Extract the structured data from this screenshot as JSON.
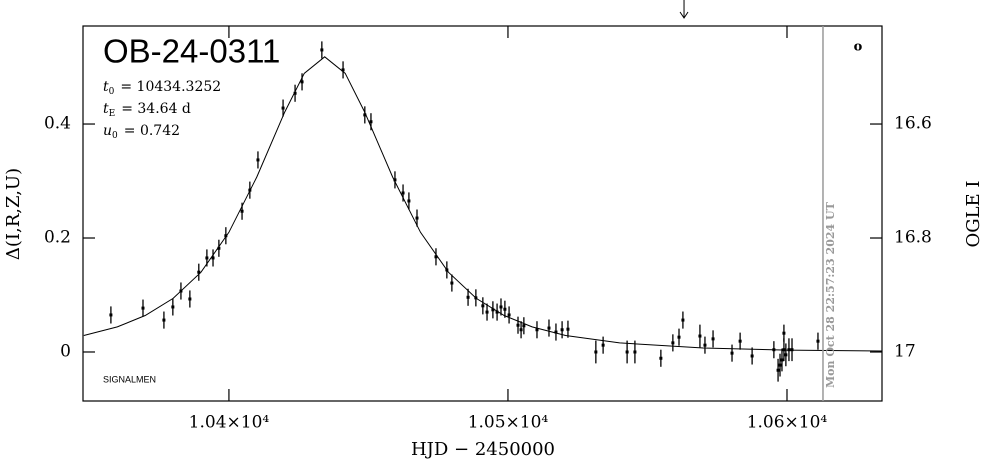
{
  "chart_data": {
    "type": "scatter",
    "title": "OB-24-0311",
    "params": [
      {
        "symbol": "t",
        "sub": "0",
        "text": "= 10434.3252"
      },
      {
        "symbol": "t",
        "sub": "E",
        "text": "= 34.64 d"
      },
      {
        "symbol": "u",
        "sub": "0",
        "text": "= 0.742"
      }
    ],
    "xlabel": "HJD − 2450000",
    "ylabel": "Δ(I,R,Z,U)",
    "y2label": "OGLE I",
    "xlim": [
      10347.7,
      10634.05
    ],
    "xticks": [
      {
        "value": 10400,
        "label": "1.04×10⁴"
      },
      {
        "value": 10500,
        "label": "1.05×10⁴"
      },
      {
        "value": 10600,
        "label": "1.06×10⁴"
      }
    ],
    "ylim": [
      -0.086,
      0.572
    ],
    "yticks": [
      0,
      0.2,
      0.4
    ],
    "y2lim": [
      17.086,
      16.428
    ],
    "y2ticks": [
      16.6,
      16.8,
      17
    ],
    "color": "#000000",
    "x": [
      10357.7,
      10369.2,
      10376.7,
      10379.9,
      10382.8,
      10386.0,
      10389.2,
      10392.1,
      10394.3,
      10396.4,
      10398.9,
      10404.7,
      10407.5,
      10410.4,
      10419.4,
      10423.7,
      10426.2,
      10433.3,
      10440.9,
      10448.7,
      10450.9,
      10459.5,
      10462.4,
      10464.5,
      10467.4,
      10474.2,
      10478.1,
      10479.9,
      10485.7,
      10488.5,
      10491.0,
      10492.5,
      10494.6,
      10496.1,
      10497.5,
      10498.9,
      10500.4,
      10503.6,
      10504.7,
      10505.7,
      10510.4,
      10514.7,
      10517.2,
      10519.4,
      10521.5,
      10531.5,
      10534.1,
      10542.7,
      10545.5,
      10554.8,
      10559.1,
      10561.3,
      10562.7,
      10568.8,
      10570.6,
      10573.5,
      10580.3,
      10583.2,
      10587.5,
      10595.3,
      10596.8,
      10597.5,
      10598.2,
      10598.9,
      10599.6,
      10600.7,
      10601.8,
      10598.9,
      10611.1
    ],
    "values": [
      0.065,
      0.077,
      0.056,
      0.079,
      0.107,
      0.093,
      0.14,
      0.165,
      0.165,
      0.182,
      0.204,
      0.247,
      0.284,
      0.337,
      0.428,
      0.454,
      0.474,
      0.53,
      0.495,
      0.416,
      0.404,
      0.302,
      0.279,
      0.265,
      0.235,
      0.167,
      0.144,
      0.121,
      0.096,
      0.095,
      0.081,
      0.07,
      0.074,
      0.07,
      0.079,
      0.075,
      0.065,
      0.047,
      0.039,
      0.046,
      0.039,
      0.042,
      0.035,
      0.039,
      0.04,
      0,
      0.012,
      0,
      0,
      -0.011,
      0.016,
      0.026,
      0.056,
      0.028,
      0.012,
      0.023,
      -0.002,
      0.019,
      -0.007,
      0.004,
      -0.032,
      -0.023,
      -0.014,
      0.004,
      -0.005,
      0.004,
      0.004,
      0.033,
      0.019
    ],
    "errors": [
      0.015,
      0.015,
      0.015,
      0.015,
      0.015,
      0.015,
      0.015,
      0.015,
      0.015,
      0.015,
      0.015,
      0.015,
      0.015,
      0.015,
      0.015,
      0.015,
      0.015,
      0.015,
      0.015,
      0.015,
      0.015,
      0.015,
      0.015,
      0.015,
      0.015,
      0.015,
      0.015,
      0.015,
      0.015,
      0.015,
      0.015,
      0.015,
      0.015,
      0.015,
      0.015,
      0.015,
      0.015,
      0.015,
      0.015,
      0.015,
      0.015,
      0.015,
      0.015,
      0.015,
      0.015,
      0.02,
      0.015,
      0.02,
      0.02,
      0.015,
      0.015,
      0.015,
      0.015,
      0.02,
      0.015,
      0.015,
      0.015,
      0.015,
      0.015,
      0.015,
      0.02,
      0.02,
      0.02,
      0.02,
      0.02,
      0.02,
      0.02,
      0.015,
      0.015
    ],
    "model": {
      "x": [
        10348,
        10360,
        10370,
        10380,
        10390,
        10400,
        10410,
        10420,
        10427,
        10434.33,
        10441.66,
        10448.66,
        10458.66,
        10468.66,
        10478.66,
        10488.66,
        10498.66,
        10508.66,
        10520.66,
        10540,
        10570,
        10600,
        10634
      ],
      "values": [
        0.029,
        0.044,
        0.064,
        0.094,
        0.14,
        0.21,
        0.307,
        0.421,
        0.489,
        0.518,
        0.489,
        0.421,
        0.307,
        0.21,
        0.14,
        0.094,
        0.064,
        0.044,
        0.029,
        0.016,
        0.007,
        0.0034,
        0.0017
      ]
    },
    "now_line": {
      "x": 10612.9,
      "label": "Mon Oct 28 22:57:23 2024 UT",
      "color": "#999999"
    },
    "arrow_x": 10563.1,
    "corner_mark": "o",
    "footnote": "SIGNALMEN"
  }
}
